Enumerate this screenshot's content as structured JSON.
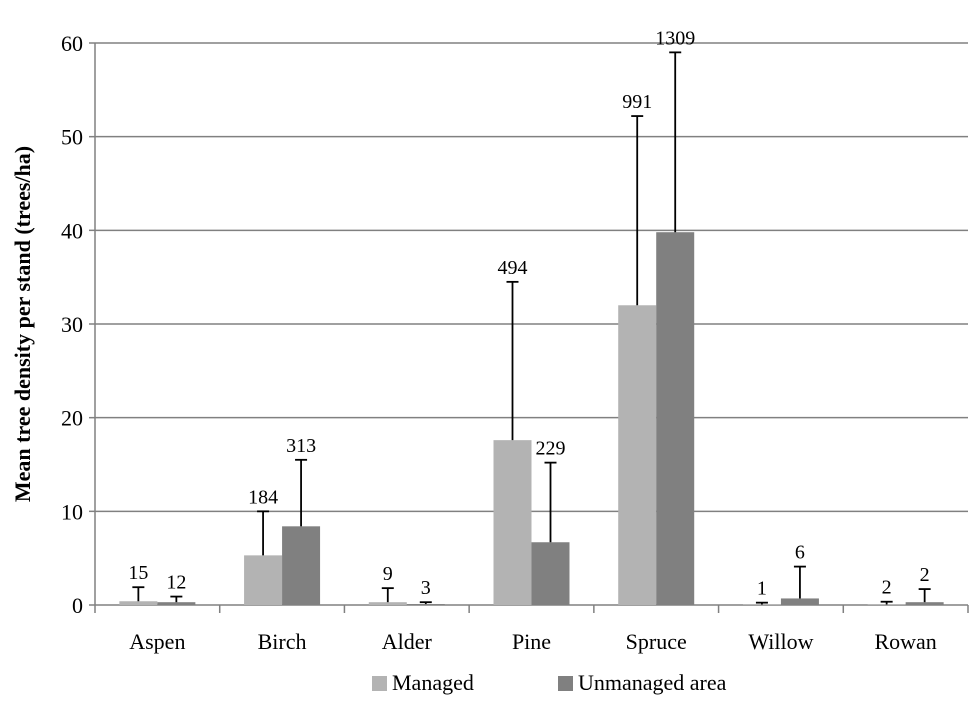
{
  "chart_data": {
    "type": "bar",
    "title": "",
    "xlabel": "",
    "ylabel": "Mean tree density per stand (trees/ha)",
    "ylim": [
      0,
      60
    ],
    "yticks": [
      0,
      10,
      20,
      30,
      40,
      50,
      60
    ],
    "grid": "horizontal",
    "legend_position": "bottom",
    "categories": [
      "Aspen",
      "Birch",
      "Alder",
      "Pine",
      "Spruce",
      "Willow",
      "Rowan"
    ],
    "series": [
      {
        "name": "Managed",
        "color": "#b3b3b3",
        "values": [
          0.4,
          5.3,
          0.3,
          17.6,
          32.0,
          0.05,
          0.05
        ],
        "error_upper": [
          1.9,
          10.0,
          1.8,
          34.5,
          52.2,
          0.25,
          0.35
        ],
        "labels": [
          "15",
          "184",
          "9",
          "494",
          "991",
          "1",
          "2"
        ]
      },
      {
        "name": "Unmanaged area",
        "color": "#808080",
        "values": [
          0.3,
          8.4,
          0.1,
          6.7,
          39.8,
          0.7,
          0.3
        ],
        "error_upper": [
          0.9,
          15.5,
          0.3,
          15.2,
          59.0,
          4.1,
          1.7
        ],
        "labels": [
          "12",
          "313",
          "3",
          "229",
          "1309",
          "6",
          "2"
        ]
      }
    ]
  }
}
